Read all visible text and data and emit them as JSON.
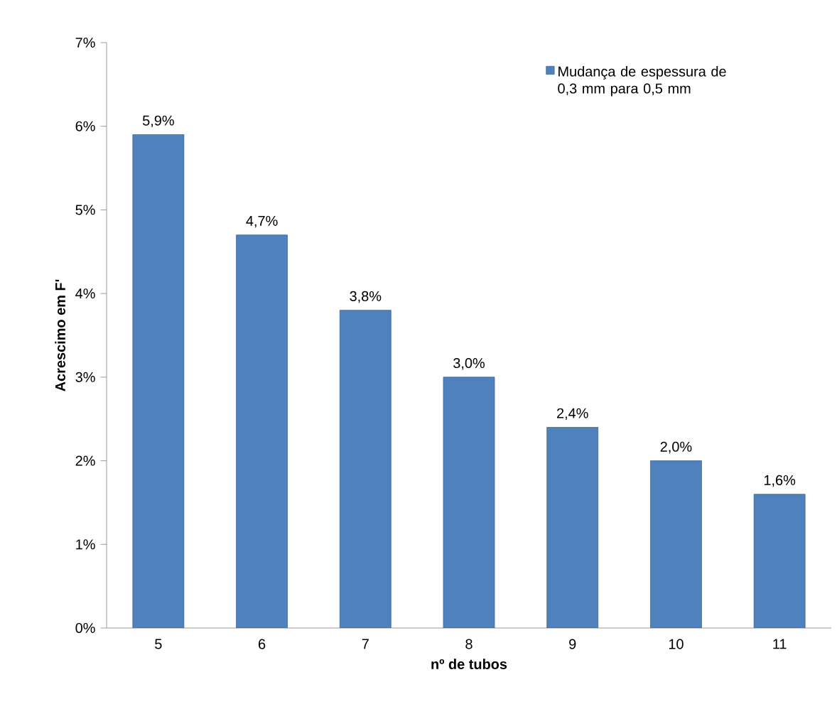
{
  "chart_data": {
    "type": "bar",
    "xlabel": "nº de tubos",
    "ylabel": "Acrescimo em F'",
    "categories": [
      "5",
      "6",
      "7",
      "8",
      "9",
      "10",
      "11"
    ],
    "series": [
      {
        "name": "Mudança de espessura de 0,3 mm para 0,5 mm",
        "color": "#4f81bd",
        "values": [
          5.9,
          4.7,
          3.8,
          3.0,
          2.4,
          2.0,
          1.6
        ],
        "value_labels": [
          "5,9%",
          "4,7%",
          "3,8%",
          "3,0%",
          "2,4%",
          "2,0%",
          "1,6%"
        ]
      }
    ],
    "ylim": [
      0,
      7
    ],
    "yticks": [
      {
        "value": 0,
        "label": "0%"
      },
      {
        "value": 1,
        "label": "1%"
      },
      {
        "value": 2,
        "label": "2%"
      },
      {
        "value": 3,
        "label": "3%"
      },
      {
        "value": 4,
        "label": "4%"
      },
      {
        "value": 5,
        "label": "5%"
      },
      {
        "value": 6,
        "label": "6%"
      },
      {
        "value": 7,
        "label": "7%"
      }
    ],
    "legend": "top right",
    "grid": false
  }
}
